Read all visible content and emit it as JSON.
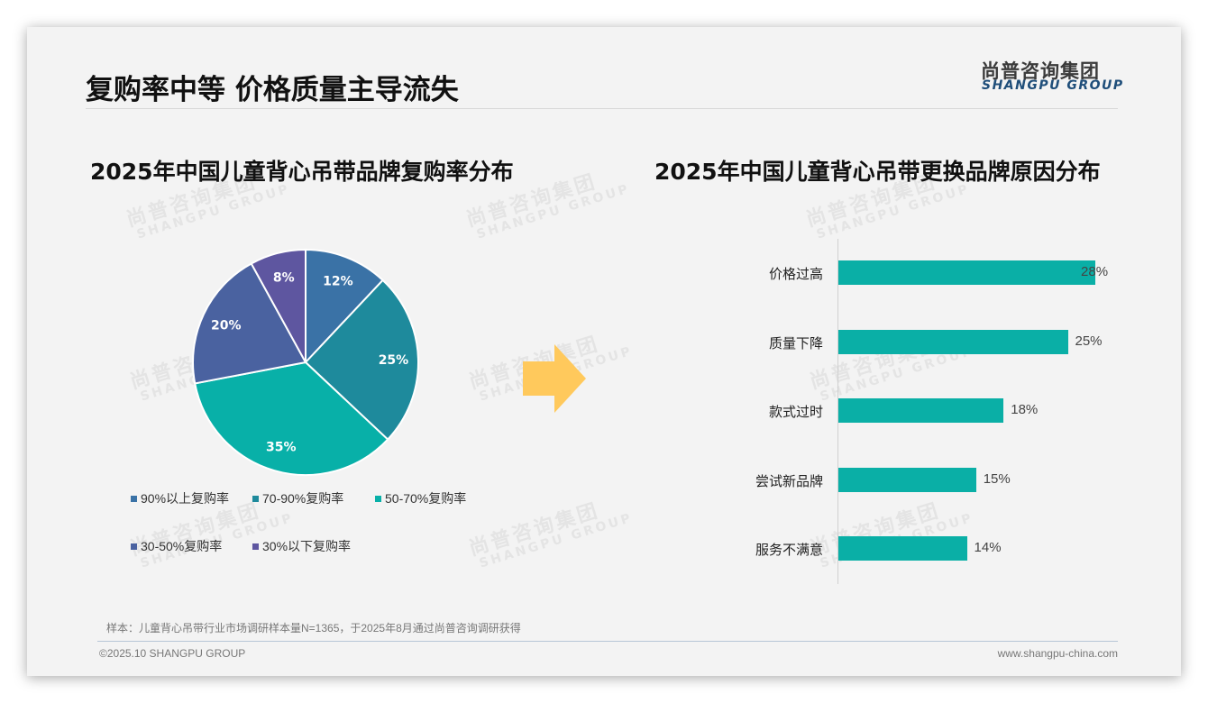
{
  "header": {
    "title": "复购率中等 价格质量主导流失",
    "logo_cn": "尚普咨询集团",
    "logo_en": "SHANGPU GROUP"
  },
  "watermark": {
    "cn": "尚普咨询集团",
    "en": "SHANGPU GROUP"
  },
  "left_chart": {
    "title": "2025年中国儿童背心吊带品牌复购率分布"
  },
  "right_chart": {
    "title": "2025年中国儿童背心吊带更换品牌原因分布"
  },
  "arrow": {
    "icon": "right-arrow-icon",
    "color": "#FFC95C"
  },
  "chart_data": [
    {
      "type": "pie",
      "title": "2025年中国儿童背心吊带品牌复购率分布",
      "categories": [
        "90%以上复购率",
        "70-90%复购率",
        "50-70%复购率",
        "30-50%复购率",
        "30%以下复购率"
      ],
      "values": [
        12,
        25,
        35,
        20,
        8
      ],
      "labels": [
        "12%",
        "25%",
        "35%",
        "20%",
        "8%"
      ],
      "colors": [
        "#3A72A6",
        "#1E8A9C",
        "#08B0A8",
        "#4A62A0",
        "#5E56A0"
      ],
      "start_angle": "12 o'clock, clockwise",
      "legend_position": "bottom"
    },
    {
      "type": "bar",
      "orientation": "horizontal",
      "title": "2025年中国儿童背心吊带更换品牌原因分布",
      "categories": [
        "价格过高",
        "质量下降",
        "款式过时",
        "尝试新品牌",
        "服务不满意"
      ],
      "values": [
        28,
        25,
        18,
        15,
        14
      ],
      "labels": [
        "28%",
        "25%",
        "18%",
        "15%",
        "14%"
      ],
      "color": "#0AAFA6",
      "xlim": [
        0,
        30
      ],
      "grid": false,
      "legend": "none"
    }
  ],
  "footer": {
    "note": "样本：儿童背心吊带行业市场调研样本量N=1365，于2025年8月通过尚普咨询调研获得",
    "copyright": "©2025.10 SHANGPU GROUP",
    "website": "www.shangpu-china.com"
  }
}
